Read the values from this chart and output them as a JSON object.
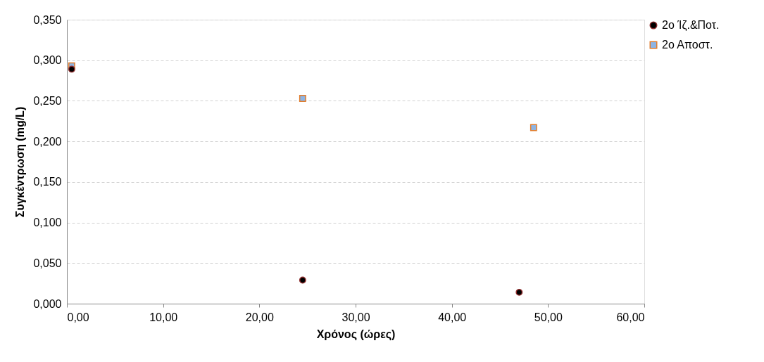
{
  "chart_data": {
    "type": "scatter",
    "xlabel": "Χρόνος (ώρες)",
    "ylabel": "Συγκέντρωση (mg/L)",
    "series": [
      {
        "name": "2ο Ίζ.&Ποτ.",
        "color": "#000000",
        "marker": "circle",
        "x": [
          0.5,
          24.5,
          47.0
        ],
        "values": [
          0.289,
          0.029,
          0.014
        ]
      },
      {
        "name": "2ο Αποστ.",
        "color": "#8eb4e3",
        "marker": "square",
        "x": [
          0.5,
          24.5,
          48.5
        ],
        "values": [
          0.293,
          0.253,
          0.217
        ]
      }
    ],
    "xlim": [
      0,
      60
    ],
    "ylim": [
      0,
      0.35
    ],
    "xticks": [
      {
        "value": 0,
        "label": "0,00"
      },
      {
        "value": 10,
        "label": "10,00"
      },
      {
        "value": 20,
        "label": "20,00"
      },
      {
        "value": 30,
        "label": "30,00"
      },
      {
        "value": 40,
        "label": "40,00"
      },
      {
        "value": 50,
        "label": "50,00"
      },
      {
        "value": 60,
        "label": "60,00"
      }
    ],
    "yticks": [
      {
        "value": 0,
        "label": "0,000"
      },
      {
        "value": 0.05,
        "label": "0,050"
      },
      {
        "value": 0.1,
        "label": "0,100"
      },
      {
        "value": 0.15,
        "label": "0,150"
      },
      {
        "value": 0.2,
        "label": "0,200"
      },
      {
        "value": 0.25,
        "label": "0,250"
      },
      {
        "value": 0.3,
        "label": "0,300"
      },
      {
        "value": 0.35,
        "label": "0,350"
      }
    ],
    "grid": "y",
    "legend": "right"
  }
}
